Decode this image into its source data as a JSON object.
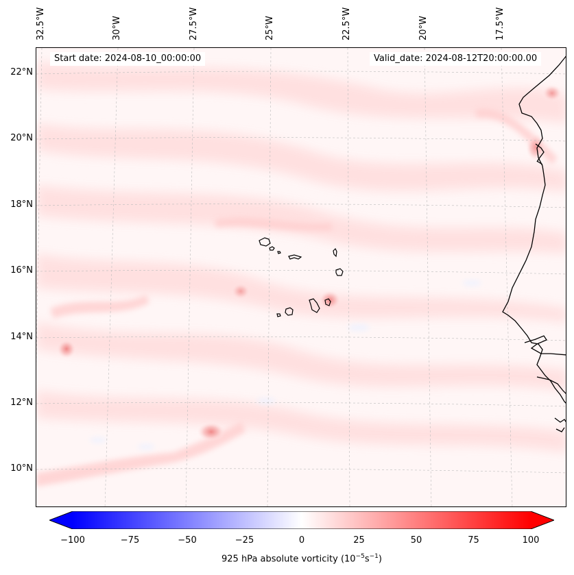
{
  "map": {
    "start_date": "Start date: 2024-08-10_00:00:00",
    "valid_date": "Valid_date: 2024-08-12T20:00:00.00",
    "lon_labels": [
      "32.5°W",
      "30°W",
      "27.5°W",
      "25°W",
      "22.5°W",
      "20°W",
      "17.5°W"
    ],
    "lat_labels": [
      "22°N",
      "20°N",
      "18°N",
      "16°N",
      "14°N",
      "12°N",
      "10°N"
    ],
    "field": "925 hPa absolute vorticity",
    "colormap": "bwr",
    "colors": {
      "negative": "#0000ff",
      "zero": "#ffffff",
      "positive": "#ff0000",
      "coastline": "#000000"
    }
  },
  "colorbar": {
    "tick_labels": [
      "−100",
      "−75",
      "−50",
      "−25",
      "0",
      "25",
      "50",
      "75",
      "100"
    ],
    "title_prefix": "925 hPa absolute vorticity (10",
    "title_exp1": "−5",
    "title_mid": "s",
    "title_exp2": "−1",
    "title_suffix": ")",
    "range": [
      -100,
      100
    ],
    "extend": "both"
  }
}
